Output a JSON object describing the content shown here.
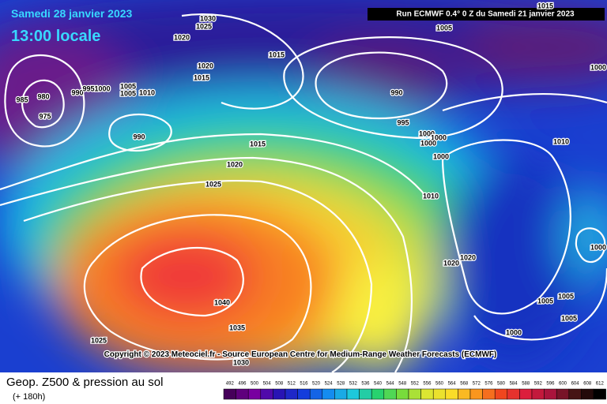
{
  "header": {
    "date": "Samedi 28 janvier 2023",
    "time": "13:00 locale",
    "run": "Run ECMWF 0.4° 0 Z du Samedi 21 janvier 2023"
  },
  "copyright": "Copyright © 2023 Meteociel.fr - Source European Centre for Medium-Range Weather Forecasts (ECMWF)",
  "footer": {
    "title": "Geop. Z500 & pression au sol",
    "subtitle": "(+ 180h)"
  },
  "isobar_labels": [
    "1030",
    "1025",
    "1020",
    "1015",
    "1020",
    "1015",
    "1005",
    "1015",
    "1000",
    "990",
    "995",
    "1000",
    "1000",
    "1000",
    "1010",
    "1000",
    "1010",
    "985",
    "980",
    "990",
    "9951000",
    "1005",
    "1005",
    "1010",
    "975",
    "990",
    "1015",
    "1020",
    "1025",
    "1020",
    "1020",
    "1005",
    "1005",
    "1005",
    "1000",
    "1000",
    "1040",
    "1035",
    "1025",
    "1030"
  ],
  "colorbar": {
    "ticks": [
      "492",
      "496",
      "500",
      "504",
      "508",
      "512",
      "516",
      "520",
      "524",
      "528",
      "532",
      "536",
      "540",
      "544",
      "548",
      "552",
      "556",
      "560",
      "564",
      "568",
      "572",
      "576",
      "580",
      "584",
      "588",
      "592",
      "596",
      "600",
      "604",
      "608",
      "612"
    ]
  }
}
